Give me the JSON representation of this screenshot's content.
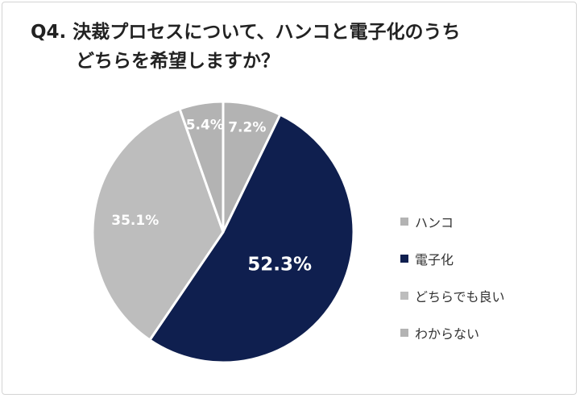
{
  "title": {
    "line1": "Q4. 決裁プロセスについて、ハンコと電子化のうち",
    "line2": "どちらを希望しますか？"
  },
  "chart_data": {
    "type": "pie",
    "title": "Q4. 決裁プロセスについて、ハンコと電子化のうち どちらを希望しますか？",
    "slices": [
      {
        "label": "ハンコ",
        "value": 7.2,
        "display": "7.2%",
        "color": "#b3b3b3",
        "label_color": "#ffffff"
      },
      {
        "label": "電子化",
        "value": 52.3,
        "display": "52.3%",
        "color": "#0f1f4f",
        "label_color": "#ffffff"
      },
      {
        "label": "どちらでも良い",
        "value": 35.1,
        "display": "35.1%",
        "color": "#bdbdbd",
        "label_color": "#ffffff"
      },
      {
        "label": "わからない",
        "value": 5.4,
        "display": "5.4%",
        "color": "#b3b3b3",
        "label_color": "#ffffff"
      }
    ],
    "legend_position": "right"
  }
}
